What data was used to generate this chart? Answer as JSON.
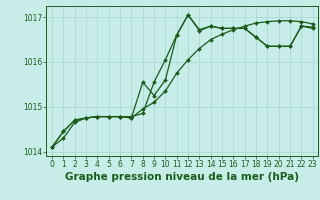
{
  "line1_jagged": {
    "x": [
      0,
      1,
      2,
      3,
      4,
      5,
      6,
      7,
      8,
      9,
      10,
      11,
      12,
      13,
      14,
      15,
      16,
      17,
      18,
      19,
      20,
      21,
      22,
      23
    ],
    "y": [
      1014.1,
      1014.45,
      1014.7,
      1014.75,
      1014.78,
      1014.78,
      1014.78,
      1014.75,
      1015.55,
      1015.25,
      1015.6,
      1016.6,
      1017.05,
      1016.7,
      1016.8,
      1016.75,
      1016.75,
      1016.75,
      1016.55,
      1016.35,
      1016.35,
      1016.35,
      1016.8,
      1016.75
    ]
  },
  "line2_smooth": {
    "x": [
      0,
      1,
      2,
      3,
      4,
      5,
      6,
      7,
      8,
      9,
      10,
      11,
      12,
      13,
      14,
      15,
      16,
      17,
      18,
      19,
      20,
      21,
      22,
      23
    ],
    "y": [
      1014.1,
      1014.3,
      1014.65,
      1014.75,
      1014.78,
      1014.78,
      1014.78,
      1014.75,
      1014.95,
      1015.1,
      1015.35,
      1015.75,
      1016.05,
      1016.3,
      1016.5,
      1016.62,
      1016.72,
      1016.8,
      1016.87,
      1016.9,
      1016.92,
      1016.92,
      1016.9,
      1016.85
    ]
  },
  "line3_upper": {
    "x": [
      0,
      1,
      2,
      3,
      4,
      5,
      6,
      7,
      8,
      9,
      10,
      11,
      12,
      13,
      14,
      15,
      16,
      17,
      18,
      19,
      20,
      21,
      22,
      23
    ],
    "y": [
      1014.1,
      1014.45,
      1014.7,
      1014.75,
      1014.78,
      1014.78,
      1014.78,
      1014.78,
      1014.85,
      1015.55,
      1016.05,
      1016.6,
      1017.05,
      1016.72,
      1016.8,
      1016.75,
      1016.75,
      1016.75,
      1016.55,
      1016.35,
      1016.35,
      1016.35,
      1016.8,
      1016.78
    ]
  },
  "line_color": "#1a5c1a",
  "marker": "D",
  "markersize": 2.0,
  "linewidth": 0.9,
  "markeredgewidth": 0.3,
  "bg_color": "#c8ede8",
  "grid_color": "#a8d4ce",
  "axis_color": "#1a5c1a",
  "text_color": "#1a5c1a",
  "ylim": [
    1013.9,
    1017.25
  ],
  "yticks": [
    1014,
    1015,
    1016,
    1017
  ],
  "xlim": [
    -0.5,
    23.5
  ],
  "xticks": [
    0,
    1,
    2,
    3,
    4,
    5,
    6,
    7,
    8,
    9,
    10,
    11,
    12,
    13,
    14,
    15,
    16,
    17,
    18,
    19,
    20,
    21,
    22,
    23
  ],
  "xlabel": "Graphe pression niveau de la mer (hPa)",
  "xlabel_fontsize": 7.5,
  "tick_fontsize": 5.5
}
